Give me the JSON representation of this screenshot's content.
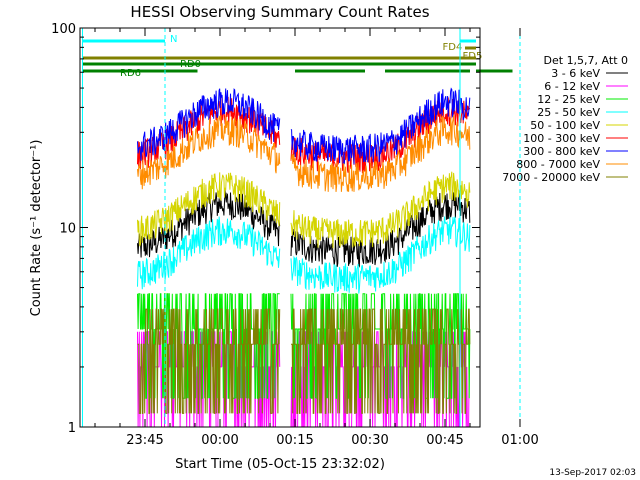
{
  "chart_data": {
    "type": "line",
    "title": "HESSI Observing Summary Count Rates",
    "ylabel": "Count Rate (s⁻¹ detector⁻¹)",
    "xlabel": "Start Time (05-Oct-15 23:32:02)",
    "yscale": "log",
    "ylim": [
      1,
      100
    ],
    "xlim_minutes": [
      -13,
      67
    ],
    "x_ticks": [
      {
        "label": "23:45",
        "minute": 0
      },
      {
        "label": "00:00",
        "minute": 15
      },
      {
        "label": "00:15",
        "minute": 30
      },
      {
        "label": "00:30",
        "minute": 45
      },
      {
        "label": "00:45",
        "minute": 60
      },
      {
        "label": "01:00",
        "minute": 75
      }
    ],
    "y_ticks": [
      {
        "label": "1",
        "value": 1
      },
      {
        "label": "10",
        "value": 10
      },
      {
        "label": "100",
        "value": 100
      }
    ],
    "legend_title": "Det 1,5,7, Att 0",
    "legend_placement": "right",
    "series": [
      {
        "name": "3 - 6 keV",
        "color": "#000000",
        "base": 10.2
      },
      {
        "name": "6 - 12 keV",
        "color": "#ff00ff",
        "base": 2.0
      },
      {
        "name": "12 - 25 keV",
        "color": "#00ee00",
        "base": 3.1
      },
      {
        "name": "25 - 50 keV",
        "color": "#00ffff",
        "base": 7.5
      },
      {
        "name": "50 - 100 keV",
        "color": "#d4d400",
        "base": 12.5
      },
      {
        "name": "100 - 300 keV",
        "color": "#ff0000",
        "base": 30
      },
      {
        "name": "300 - 800 keV",
        "color": "#0000ff",
        "base": 33
      },
      {
        "name": "800 - 7000 keV",
        "color": "#ff8c00",
        "base": 24
      },
      {
        "name": "7000 - 20000 keV",
        "color": "#808000",
        "base": 2.6
      }
    ],
    "bars": [
      {
        "label": "N",
        "color": "#00ffff",
        "segments": [
          [
            -12.5,
            4
          ],
          [
            63,
            75
          ]
        ],
        "label_minute": 5
      },
      {
        "label": "FD4",
        "color": "#808000",
        "segments": [
          [
            64,
            75
          ]
        ],
        "label_minute": 59.5
      },
      {
        "label": "FD5",
        "color": "#808000",
        "segments": [
          [
            -12.5,
            75
          ]
        ],
        "label_minute": 63.5
      },
      {
        "label": "RD0",
        "color": "#008000",
        "segments": [
          [
            -12.5,
            75
          ]
        ],
        "label_minute": 7
      },
      {
        "label": "RD6",
        "color": "#008000",
        "segments": [
          [
            -12.5,
            10.5
          ],
          [
            30,
            44
          ],
          [
            48,
            65
          ],
          [
            73.5,
            75
          ]
        ],
        "label_minute": -5
      }
    ],
    "vlines": [
      {
        "color": "#00ffff",
        "minute": -12.5,
        "dashed": false
      },
      {
        "color": "#00ffff",
        "minute": 4,
        "dashed": true
      },
      {
        "color": "#00ffff",
        "minute": 63,
        "dashed": false
      },
      {
        "color": "#00ffff",
        "minute": 75,
        "dashed": true
      }
    ],
    "grid": false
  },
  "footer": {
    "date_stamp": "13-Sep-2017 02:03"
  }
}
